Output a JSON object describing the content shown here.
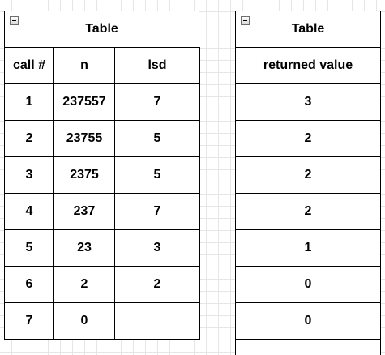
{
  "left_table": {
    "title": "Table",
    "headers": [
      "call #",
      "n",
      "lsd"
    ],
    "rows": [
      [
        "1",
        "237557",
        "7"
      ],
      [
        "2",
        "23755",
        "5"
      ],
      [
        "3",
        "2375",
        "5"
      ],
      [
        "4",
        "237",
        "7"
      ],
      [
        "5",
        "23",
        "3"
      ],
      [
        "6",
        "2",
        "2"
      ],
      [
        "7",
        "0",
        ""
      ]
    ]
  },
  "right_table": {
    "title": "Table",
    "headers": [
      "returned value"
    ],
    "rows": [
      [
        "3"
      ],
      [
        "2"
      ],
      [
        "2"
      ],
      [
        "2"
      ],
      [
        "1"
      ],
      [
        "0"
      ],
      [
        "0"
      ]
    ]
  }
}
